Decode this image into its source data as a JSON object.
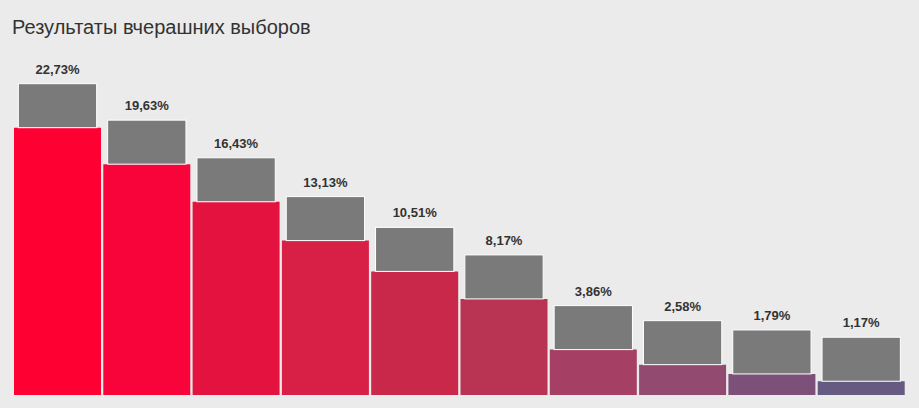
{
  "chart_data": {
    "type": "bar",
    "title": "Результаты вчерашних выборов",
    "categories": [
      null,
      null,
      null,
      null,
      null,
      null,
      null,
      null,
      null,
      null
    ],
    "values": [
      22.73,
      19.63,
      16.43,
      13.13,
      10.51,
      8.17,
      3.86,
      2.58,
      1.79,
      1.17
    ],
    "value_labels": [
      "22,73%",
      "19,63%",
      "16,43%",
      "13,13%",
      "10,51%",
      "8,17%",
      "3,86%",
      "2,58%",
      "1,79%",
      "1,17%"
    ],
    "colors": [
      "#ff0033",
      "#f8043a",
      "#e4123f",
      "#d81f46",
      "#c9284b",
      "#b83452",
      "#a53f63",
      "#924a70",
      "#7d507a",
      "#665a82"
    ],
    "ylim": [
      0,
      25
    ],
    "data_labels": true,
    "tick_labels": false
  }
}
